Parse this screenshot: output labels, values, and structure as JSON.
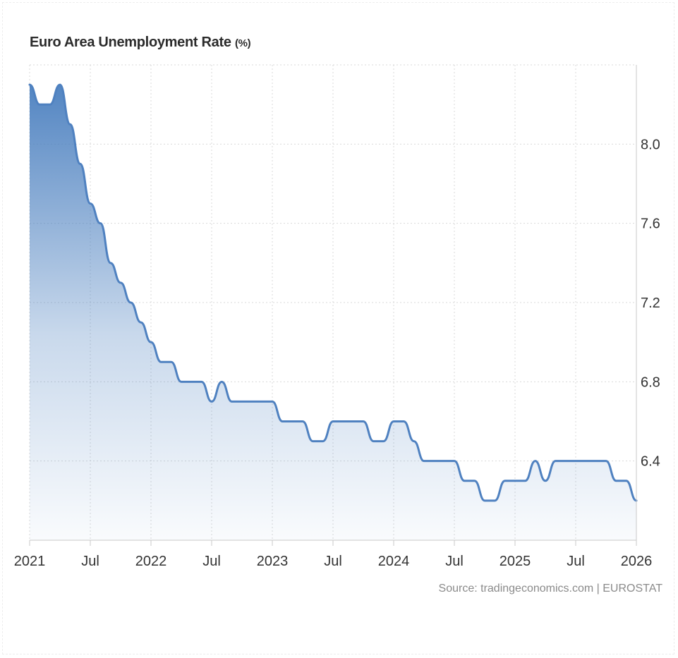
{
  "title": "Euro Area Unemployment Rate",
  "title_unit": "(%)",
  "source": "Source: tradingeconomics.com | EUROSTAT",
  "colors": {
    "line": "#4f81c0",
    "fill_top": "#4a7fbf",
    "grid": "#d9d9d9",
    "axis": "#c8c8c8",
    "text": "#333333",
    "source_text": "#8a8a8a"
  },
  "chart_data": {
    "type": "area",
    "title": "Euro Area Unemployment Rate",
    "ylabel": "(%)",
    "xlabel": "",
    "y_axis_side": "right",
    "grid": true,
    "ylim": [
      6.0,
      8.4
    ],
    "y_ticks": [
      6.4,
      6.8,
      7.2,
      7.6,
      8.0
    ],
    "y_tick_labels": [
      "6.4",
      "6.8",
      "7.2",
      "7.6",
      "8.0"
    ],
    "xlim": [
      "2021-01",
      "2026-01"
    ],
    "x_ticks": [
      "2021-01",
      "2021-07",
      "2022-01",
      "2022-07",
      "2023-01",
      "2023-07",
      "2024-01",
      "2024-07",
      "2025-01",
      "2025-07",
      "2026-01"
    ],
    "x_tick_labels": [
      "2021",
      "Jul",
      "2022",
      "Jul",
      "2023",
      "Jul",
      "2024",
      "Jul",
      "2025",
      "Jul",
      "2026"
    ],
    "series": [
      {
        "x": [
          "2021-01",
          "2021-02",
          "2021-03",
          "2021-04",
          "2021-05",
          "2021-06",
          "2021-07",
          "2021-08",
          "2021-09",
          "2021-10",
          "2021-11",
          "2021-12",
          "2022-01",
          "2022-02",
          "2022-03",
          "2022-04",
          "2022-05",
          "2022-06",
          "2022-07",
          "2022-08",
          "2022-09",
          "2022-10",
          "2022-11",
          "2022-12",
          "2023-01",
          "2023-02",
          "2023-03",
          "2023-04",
          "2023-05",
          "2023-06",
          "2023-07",
          "2023-08",
          "2023-09",
          "2023-10",
          "2023-11",
          "2023-12",
          "2024-01",
          "2024-02",
          "2024-03",
          "2024-04",
          "2024-05",
          "2024-06",
          "2024-07",
          "2024-08",
          "2024-09",
          "2024-10",
          "2024-11",
          "2024-12",
          "2025-01",
          "2025-02",
          "2025-03",
          "2025-04",
          "2025-05",
          "2025-06",
          "2025-07",
          "2025-08",
          "2025-09",
          "2025-10",
          "2025-11",
          "2025-12",
          "2026-01"
        ],
        "values": [
          8.3,
          8.2,
          8.2,
          8.3,
          8.1,
          7.9,
          7.7,
          7.6,
          7.4,
          7.3,
          7.2,
          7.1,
          7.0,
          6.9,
          6.9,
          6.8,
          6.8,
          6.8,
          6.7,
          6.8,
          6.7,
          6.7,
          6.7,
          6.7,
          6.7,
          6.6,
          6.6,
          6.6,
          6.5,
          6.5,
          6.6,
          6.6,
          6.6,
          6.6,
          6.5,
          6.5,
          6.6,
          6.6,
          6.5,
          6.4,
          6.4,
          6.4,
          6.4,
          6.3,
          6.3,
          6.2,
          6.2,
          6.3,
          6.3,
          6.3,
          6.4,
          6.3,
          6.4,
          6.4,
          6.4,
          6.4,
          6.4,
          6.4,
          6.3,
          6.3,
          6.2
        ]
      }
    ]
  }
}
